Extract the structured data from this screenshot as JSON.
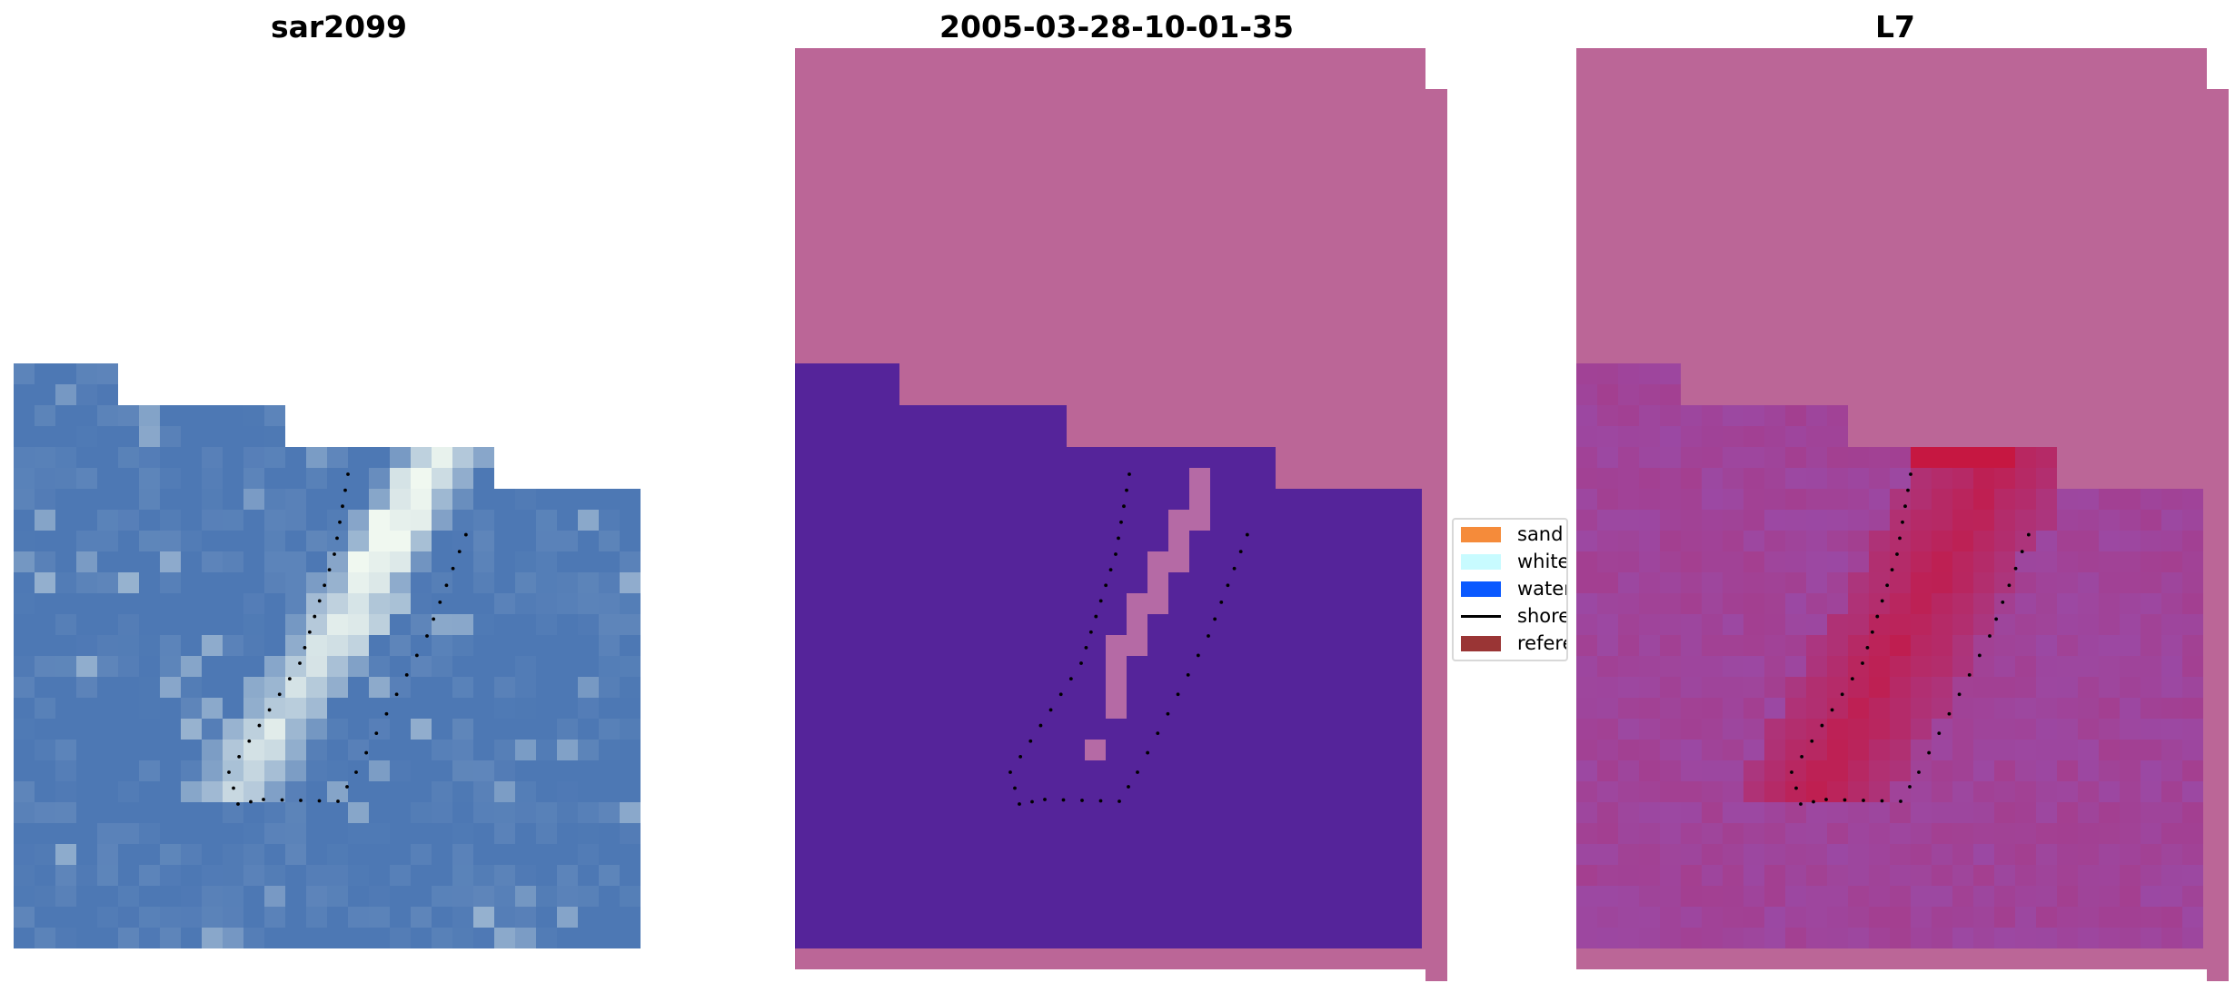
{
  "panels": [
    {
      "title": "sar2099"
    },
    {
      "title": "2005-03-28-10-01-35"
    },
    {
      "title": "L7"
    }
  ],
  "legend": {
    "items": [
      {
        "label": "sand",
        "color": "#f58b3a",
        "kind": "patch"
      },
      {
        "label": "whitewater",
        "color": "#c8fbff",
        "kind": "patch"
      },
      {
        "label": "water",
        "color": "#0a59ff",
        "kind": "patch"
      },
      {
        "label": "shoreline",
        "color": "#000000",
        "kind": "line"
      },
      {
        "label": "reference",
        "color": "#9a3535",
        "kind": "patch"
      }
    ]
  },
  "colors": {
    "sar_water": "#4d78b4",
    "sar_foam": "#f0f8f0",
    "mask_background": "#bb6697",
    "mask_water": "#55249a",
    "mask_sand": "#b56aa5",
    "l7_background": "#bb6697",
    "l7_low": "#9a4aa6",
    "l7_high": "#c8143c"
  }
}
